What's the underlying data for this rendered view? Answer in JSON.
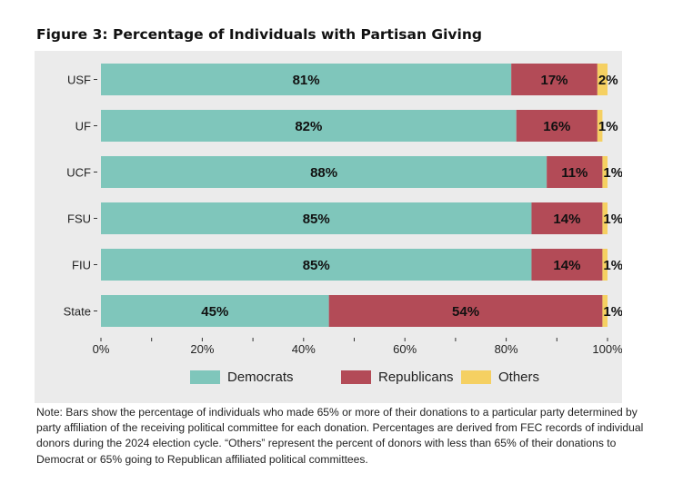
{
  "title": "Figure 3: Percentage of Individuals with Partisan Giving",
  "note": "Note: Bars show the percentage of individuals who made 65% or more of their donations to a particular party determined by party affiliation of the receiving political committee for each donation. Percentages are derived from FEC records of individual donors during the 2024 election cycle. “Others” represent the percent of donors with less than 65% of their donations to Democrat or 65% going to Republican affiliated political committees.",
  "colors": {
    "democrats": "#7fc6bb",
    "republicans": "#b34b57",
    "others": "#f5d062",
    "plot_background": "#ebebeb"
  },
  "chart_data": {
    "type": "bar",
    "orientation": "horizontal",
    "stacked": true,
    "categories": [
      "USF",
      "UF",
      "UCF",
      "FSU",
      "FIU",
      "State"
    ],
    "series": [
      {
        "name": "Democrats",
        "values": [
          81,
          82,
          88,
          85,
          85,
          45
        ],
        "labels": [
          "81%",
          "82%",
          "88%",
          "85%",
          "85%",
          "45%"
        ]
      },
      {
        "name": "Republicans",
        "values": [
          17,
          16,
          11,
          14,
          14,
          54
        ],
        "labels": [
          "17%",
          "16%",
          "11%",
          "14%",
          "14%",
          "54%"
        ]
      },
      {
        "name": "Others",
        "values": [
          2,
          1,
          1,
          1,
          1,
          1
        ],
        "labels": [
          "2%",
          "1%",
          "1%",
          "1%",
          "1%",
          "1%"
        ]
      }
    ],
    "xlim": [
      0,
      100
    ],
    "xticks": [
      0,
      20,
      40,
      60,
      80,
      100
    ],
    "xtick_labels": [
      "0%",
      "20%",
      "40%",
      "60%",
      "80%",
      "100%"
    ],
    "grid": false,
    "legend_position": "bottom"
  }
}
